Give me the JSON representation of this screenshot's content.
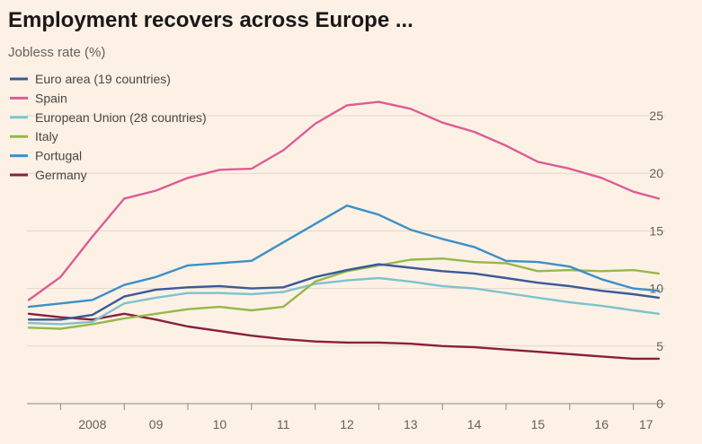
{
  "chart_data": {
    "type": "line",
    "title": "Employment recovers across Europe ...",
    "subtitle": "Jobless rate (%)",
    "xlabel": "",
    "ylabel": "Jobless rate (%)",
    "xlim": [
      2007.5,
      2017.5
    ],
    "ylim": [
      0,
      25
    ],
    "yticks": [
      0,
      5,
      10,
      15,
      20,
      25
    ],
    "xticks": [
      {
        "value": 2008,
        "label": "2008"
      },
      {
        "value": 2009,
        "label": "09"
      },
      {
        "value": 2010,
        "label": "10"
      },
      {
        "value": 2011,
        "label": "11"
      },
      {
        "value": 2012,
        "label": "12"
      },
      {
        "value": 2013,
        "label": "13"
      },
      {
        "value": 2014,
        "label": "14"
      },
      {
        "value": 2015,
        "label": "15"
      },
      {
        "value": 2016,
        "label": "16"
      },
      {
        "value": 2017,
        "label": "17"
      }
    ],
    "x": [
      2007.5,
      2008.0,
      2008.5,
      2009.0,
      2009.5,
      2010.0,
      2010.5,
      2011.0,
      2011.5,
      2012.0,
      2012.5,
      2013.0,
      2013.5,
      2014.0,
      2014.5,
      2015.0,
      2015.5,
      2016.0,
      2016.5,
      2017.0,
      2017.4
    ],
    "series": [
      {
        "name": "Euro area (19 countries)",
        "color": "#3a5a98",
        "values": [
          7.3,
          7.3,
          7.7,
          9.3,
          9.9,
          10.1,
          10.2,
          10.0,
          10.1,
          11.0,
          11.6,
          12.1,
          11.8,
          11.5,
          11.3,
          10.9,
          10.5,
          10.2,
          9.8,
          9.5,
          9.2
        ]
      },
      {
        "name": "Spain",
        "color": "#dd5c94",
        "values": [
          9.0,
          11.0,
          14.5,
          17.8,
          18.5,
          19.6,
          20.3,
          20.4,
          22.0,
          24.3,
          25.9,
          26.2,
          25.6,
          24.4,
          23.6,
          22.4,
          21.0,
          20.4,
          19.6,
          18.4,
          17.8
        ]
      },
      {
        "name": "European Union (28 countries)",
        "color": "#7ec3cc",
        "values": [
          7.0,
          6.9,
          7.1,
          8.7,
          9.2,
          9.6,
          9.6,
          9.5,
          9.7,
          10.4,
          10.7,
          10.9,
          10.6,
          10.2,
          10.0,
          9.6,
          9.2,
          8.8,
          8.5,
          8.1,
          7.8
        ]
      },
      {
        "name": "Italy",
        "color": "#96b84a",
        "values": [
          6.6,
          6.5,
          6.9,
          7.4,
          7.8,
          8.2,
          8.4,
          8.1,
          8.4,
          10.6,
          11.5,
          12.0,
          12.5,
          12.6,
          12.3,
          12.2,
          11.5,
          11.6,
          11.5,
          11.6,
          11.3
        ]
      },
      {
        "name": "Portugal",
        "color": "#3c8fc6",
        "values": [
          8.4,
          8.7,
          9.0,
          10.3,
          11.0,
          12.0,
          12.2,
          12.4,
          14.0,
          15.6,
          17.2,
          16.4,
          15.1,
          14.3,
          13.6,
          12.4,
          12.3,
          11.9,
          10.8,
          10.0,
          9.8
        ]
      },
      {
        "name": "Germany",
        "color": "#8a1f3c",
        "values": [
          7.8,
          7.5,
          7.3,
          7.8,
          7.3,
          6.7,
          6.3,
          5.9,
          5.6,
          5.4,
          5.3,
          5.3,
          5.2,
          5.0,
          4.9,
          4.7,
          4.5,
          4.3,
          4.1,
          3.9,
          3.9
        ]
      }
    ],
    "legend_position": "top-left",
    "grid": true
  }
}
